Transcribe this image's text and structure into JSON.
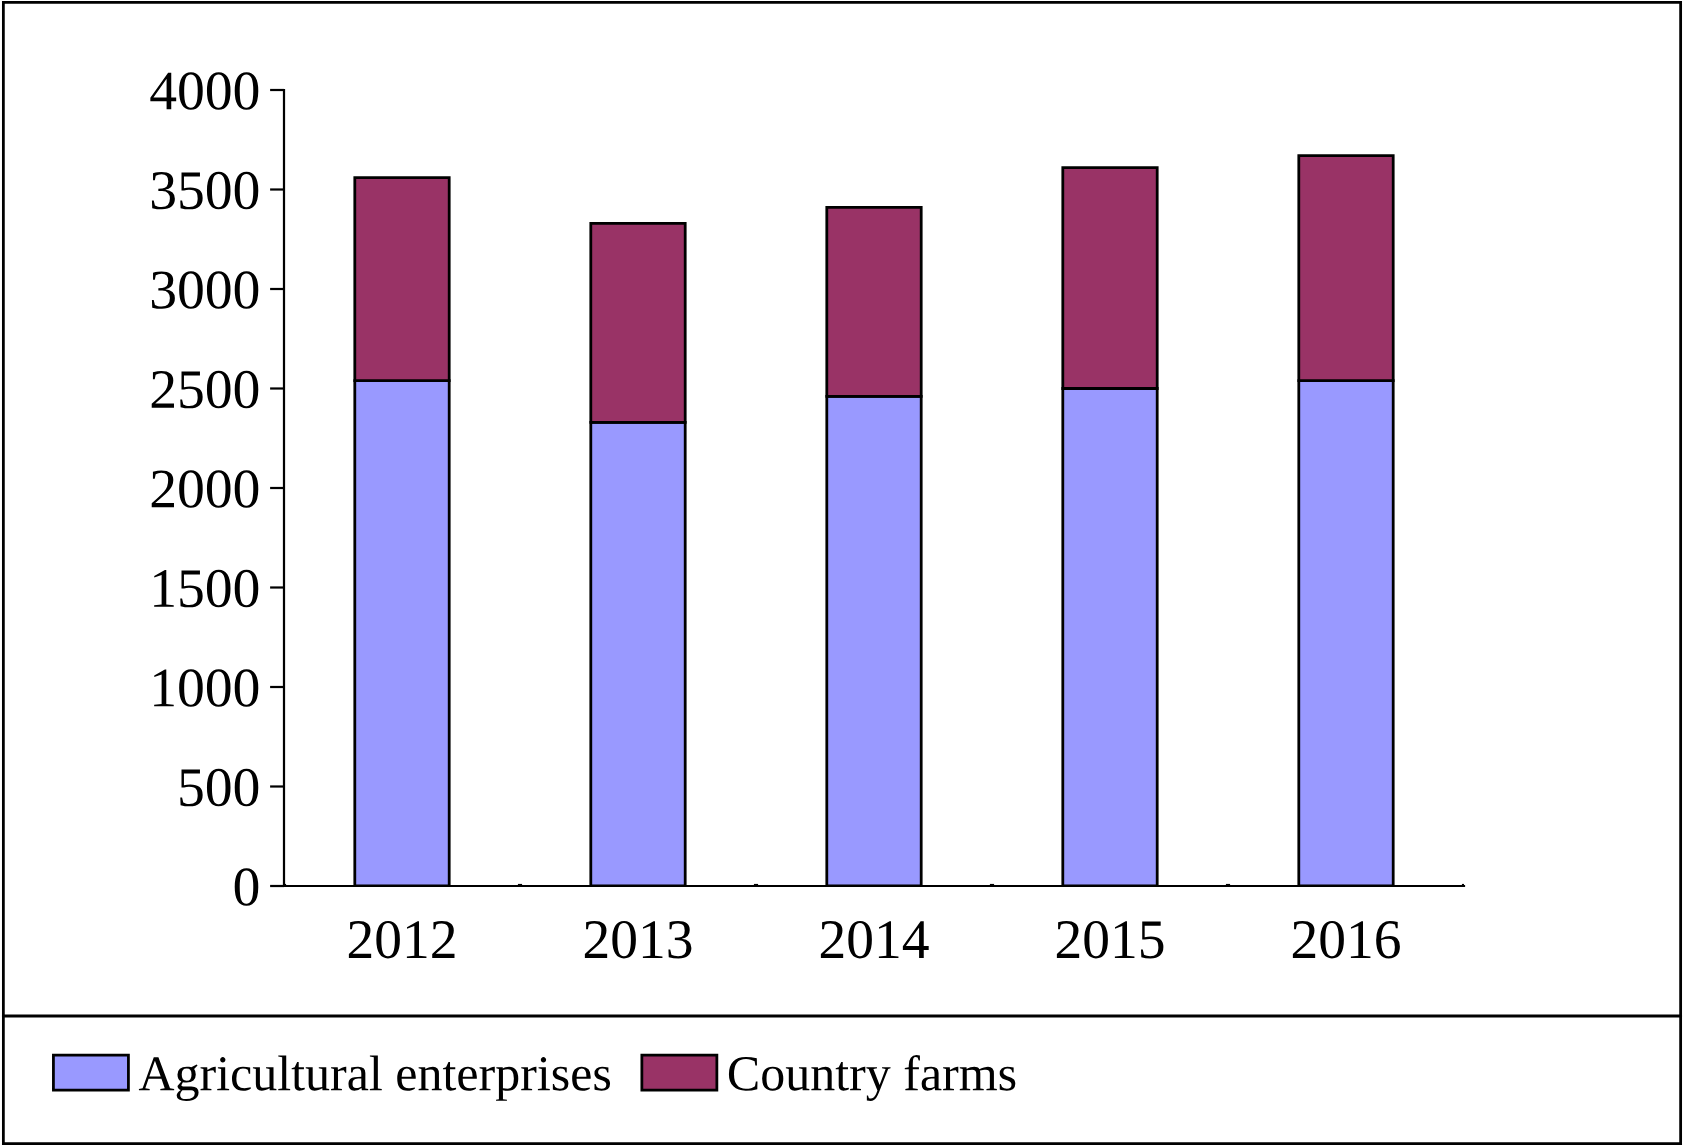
{
  "chart_data": {
    "type": "bar",
    "stacked": true,
    "categories": [
      "2012",
      "2013",
      "2014",
      "2015",
      "2016"
    ],
    "series": [
      {
        "name": "Agricultural enterprises",
        "color": "#9999ff",
        "values": [
          2540,
          2330,
          2460,
          2500,
          2540
        ]
      },
      {
        "name": "Country farms",
        "color": "#993366",
        "values": [
          1020,
          1000,
          950,
          1110,
          1130
        ]
      }
    ],
    "ylim": [
      0,
      4000
    ],
    "yticks": [
      0,
      500,
      1000,
      1500,
      2000,
      2500,
      3000,
      3500,
      4000
    ],
    "grid": false,
    "legend": "bottom"
  }
}
